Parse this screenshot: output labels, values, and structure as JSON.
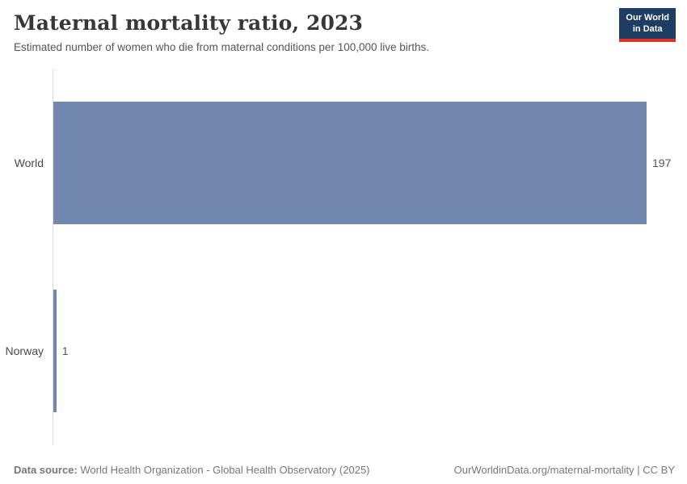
{
  "header": {
    "title": "Maternal mortality ratio, 2023",
    "subtitle": "Estimated number of women who die from maternal conditions per 100,000 live births.",
    "logo": {
      "line1": "Our World",
      "line2": "in Data"
    }
  },
  "chart_data": {
    "type": "bar",
    "orientation": "horizontal",
    "title": "Maternal mortality ratio, 2023",
    "categories": [
      "World",
      "Norway"
    ],
    "values": [
      197,
      1
    ],
    "value_labels": [
      "197",
      "1"
    ],
    "xlabel": "",
    "ylabel": "",
    "xlim": [
      0,
      197
    ],
    "grid": false,
    "legend": false,
    "bar_color": "#7288ae"
  },
  "footer": {
    "data_source_label": "Data source:",
    "data_source_value": " World Health Organization - Global Health Observatory (2025)",
    "link": "OurWorldinData.org/maternal-mortality | CC BY"
  },
  "colors": {
    "bar": "#7288ae",
    "logo_bg": "#1d3d63",
    "logo_accent": "#dc3426",
    "axis": "#dedede"
  }
}
